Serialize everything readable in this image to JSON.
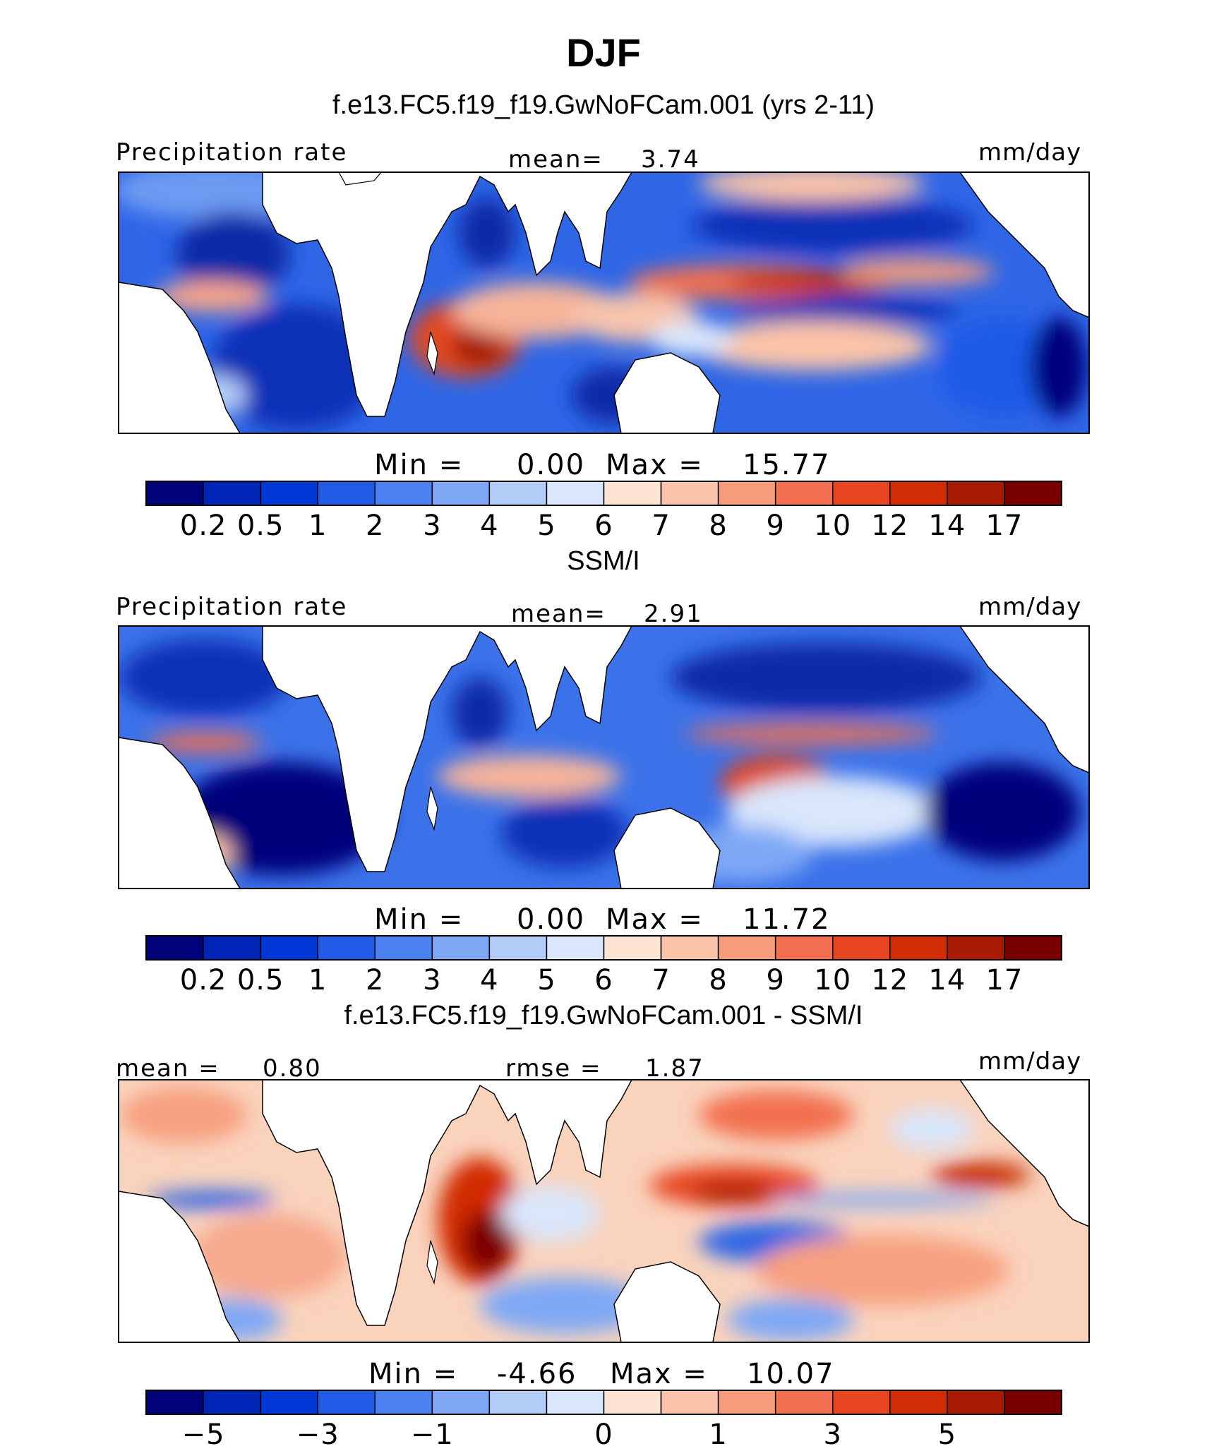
{
  "title": "DJF",
  "panels": [
    {
      "heading": "f.e13.FC5.f19_f19.GwNoFCam.001 (yrs 2-11)",
      "left_label": "Precipitation rate",
      "mid_label": "mean=",
      "mid_value": "3.74",
      "units": "mm/day",
      "stats": {
        "min_label": "Min =",
        "min": "0.00",
        "max_label": "Max =",
        "max": "15.77"
      },
      "colorbar": "precip"
    },
    {
      "heading": "SSM/I",
      "left_label": "Precipitation rate",
      "mid_label": "mean=",
      "mid_value": "2.91",
      "units": "mm/day",
      "stats": {
        "min_label": "Min =",
        "min": "0.00",
        "max_label": "Max =",
        "max": "11.72"
      },
      "colorbar": "precip"
    },
    {
      "heading": "f.e13.FC5.f19_f19.GwNoFCam.001 - SSM/I",
      "left_label": "mean =",
      "left_value": "0.80",
      "mid_label": "rmse =",
      "mid_value": "1.87",
      "units": "mm/day",
      "stats": {
        "min_label": "Min =",
        "min": "-4.66",
        "max_label": "Max =",
        "max": "10.07"
      },
      "colorbar": "diff"
    }
  ],
  "colorbars": {
    "precip": {
      "colors": [
        "#00037a",
        "#0024b5",
        "#0038d8",
        "#1f5ae8",
        "#4a80f0",
        "#7ea8f5",
        "#b2ccf8",
        "#d9e6fb",
        "#fde4d2",
        "#fbc4a8",
        "#f79c7a",
        "#f27050",
        "#e84620",
        "#d12c05",
        "#a81a02",
        "#7a0000"
      ],
      "ticks": [
        "0.2",
        "0.5",
        "1",
        "2",
        "3",
        "4",
        "5",
        "6",
        "7",
        "8",
        "9",
        "10",
        "12",
        "14",
        "17"
      ]
    },
    "diff": {
      "colors": [
        "#00037a",
        "#0024b5",
        "#0038d8",
        "#1f5ae8",
        "#4a80f0",
        "#7ea8f5",
        "#b2ccf8",
        "#d9e6fb",
        "#fde4d2",
        "#fbc4a8",
        "#f79c7a",
        "#f27050",
        "#e84620",
        "#d12c05",
        "#a81a02",
        "#7a0000"
      ],
      "ticks": [
        "−5",
        "−3",
        "−1",
        "0",
        "1",
        "3",
        "5"
      ]
    }
  }
}
